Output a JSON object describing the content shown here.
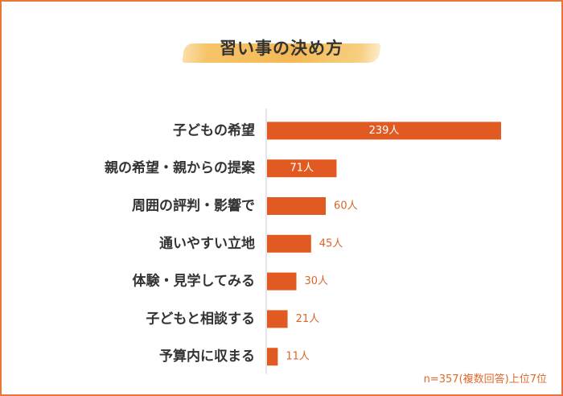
{
  "colors": {
    "bar": "#e05a22",
    "frame": "#e8773c",
    "label": "#333333",
    "value_outside": "#d9662b",
    "value_inside": "#ffffff",
    "axis": "#cccccc"
  },
  "title": "習い事の決め方",
  "footnote": "n=357(複数回答)上位7位",
  "chart_data": {
    "type": "bar",
    "orientation": "horizontal",
    "categories": [
      "子どもの希望",
      "親の希望・親からの提案",
      "周囲の評判・影響で",
      "通いやすい立地",
      "体験・見学してみる",
      "子どもと相談する",
      "予算内に収まる"
    ],
    "values": [
      239,
      71,
      60,
      45,
      30,
      21,
      11
    ],
    "value_labels": [
      "239人",
      "71人",
      "60人",
      "45人",
      "30人",
      "21人",
      "11人"
    ],
    "unit": "人",
    "title": "習い事の決め方",
    "xlabel": "",
    "ylabel": "",
    "xlim": [
      0,
      239
    ],
    "grid": false,
    "legend": "none"
  }
}
